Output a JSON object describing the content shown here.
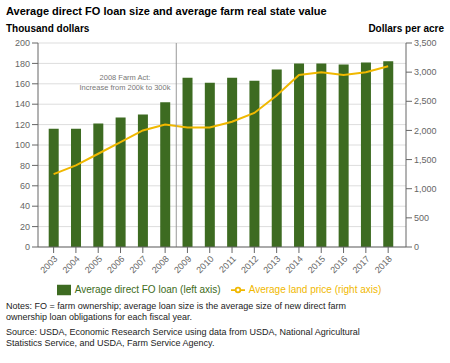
{
  "chart_data": {
    "type": "bar",
    "title": "Average direct FO loan size and average farm real state value",
    "y_label": "Thousand dollars",
    "y2_label": "Dollars per acre",
    "x": [
      2003,
      2004,
      2005,
      2006,
      2007,
      2008,
      2009,
      2010,
      2011,
      2012,
      2013,
      2014,
      2015,
      2016,
      2017,
      2018
    ],
    "series": [
      {
        "name": "Average direct FO loan (left axis)",
        "type": "bar",
        "color": "#3d6b21",
        "values": [
          116,
          116,
          121,
          127,
          130,
          142,
          166,
          161,
          166,
          163,
          174,
          180,
          180,
          179,
          181,
          182
        ]
      },
      {
        "name": "Average land price (right axis)",
        "type": "line",
        "color": "#f0b800",
        "axis": "y2",
        "values": [
          1250,
          1400,
          1600,
          1800,
          2000,
          2100,
          2050,
          2050,
          2150,
          2300,
          2600,
          2950,
          3000,
          2950,
          3000,
          3100
        ]
      }
    ],
    "xlim": [
      2002.3,
      2018.8
    ],
    "xticks": [
      2003,
      2004,
      2005,
      2006,
      2007,
      2008,
      2009,
      2010,
      2011,
      2012,
      2013,
      2014,
      2015,
      2016,
      2017,
      2018
    ],
    "ylim": [
      0,
      200
    ],
    "yticks": [
      0,
      20,
      40,
      60,
      80,
      100,
      120,
      140,
      160,
      180,
      200
    ],
    "y2lim": [
      0,
      3500
    ],
    "y2ticks": [
      0,
      500,
      {
        "value": 1000,
        "label": "1,000"
      },
      {
        "value": 1500,
        "label": "1,500"
      },
      {
        "value": 2000,
        "label": "2,000"
      },
      {
        "value": 2500,
        "label": "2,500"
      },
      {
        "value": 3000,
        "label": "3,000"
      },
      {
        "value": 3500,
        "label": "3,500"
      }
    ],
    "grid": true,
    "legend": "bottom",
    "reference_lines": [
      {
        "x": 2008.5
      }
    ],
    "annotations": [
      {
        "text": "2008 Farm Act:\nIncrease from 200k to 300k",
        "x": 2006.2,
        "y": 152
      }
    ],
    "notes": [
      "Notes: FO = farm ownership; average loan size is the average size of new direct farm",
      "ownership loan obligations for each fiscal year."
    ],
    "source": [
      "Source: USDA, Economic Research Service using data from USDA, National Agricultural",
      "Statistics Service, and USDA, Farm Service Agency."
    ]
  }
}
